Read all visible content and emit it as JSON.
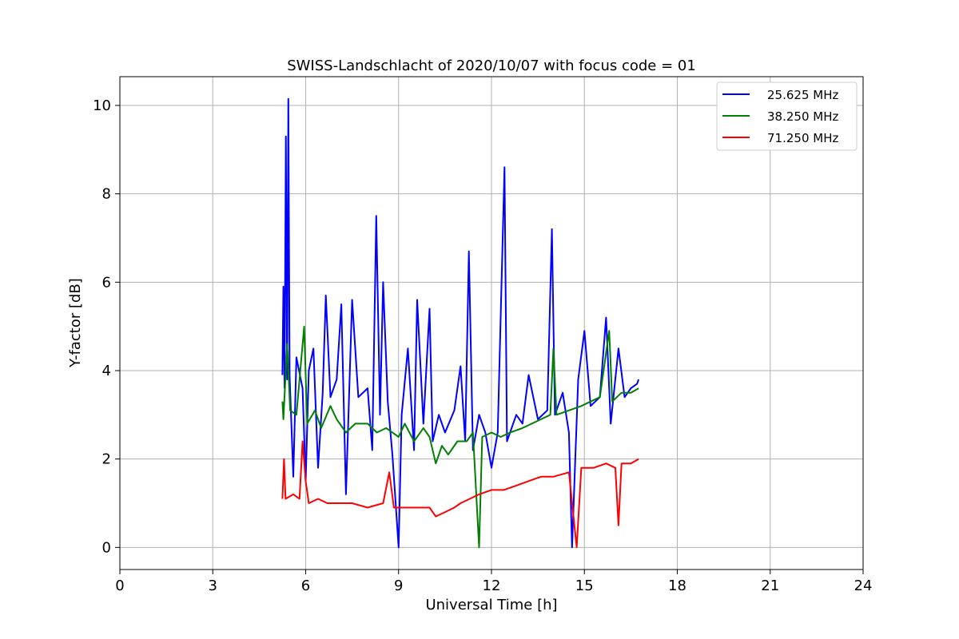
{
  "chart_data": {
    "type": "line",
    "title": "SWISS-Landschlacht of 2020/10/07 with focus code = 01",
    "xlabel": "Universal Time [h]",
    "ylabel": "Y-factor [dB]",
    "xlim": [
      0,
      24
    ],
    "ylim": [
      -0.5,
      10.65
    ],
    "xticks": [
      "0",
      "3",
      "6",
      "9",
      "12",
      "15",
      "18",
      "21",
      "24"
    ],
    "yticks": [
      "0",
      "2",
      "4",
      "6",
      "8",
      "10"
    ],
    "grid": true,
    "legend_position": "top-right",
    "series": [
      {
        "name": "25.625 MHz",
        "color": "#0000ff",
        "points": [
          [
            5.25,
            3.9
          ],
          [
            5.28,
            5.9
          ],
          [
            5.32,
            3.6
          ],
          [
            5.36,
            9.3
          ],
          [
            5.4,
            3.8
          ],
          [
            5.44,
            10.15
          ],
          [
            5.48,
            3.9
          ],
          [
            5.6,
            1.6
          ],
          [
            5.7,
            4.3
          ],
          [
            5.9,
            3.6
          ],
          [
            6.0,
            1.5
          ],
          [
            6.1,
            4.0
          ],
          [
            6.25,
            4.5
          ],
          [
            6.4,
            1.8
          ],
          [
            6.55,
            3.5
          ],
          [
            6.65,
            5.7
          ],
          [
            6.8,
            3.4
          ],
          [
            7.0,
            3.8
          ],
          [
            7.15,
            5.5
          ],
          [
            7.3,
            1.2
          ],
          [
            7.5,
            5.6
          ],
          [
            7.7,
            3.4
          ],
          [
            8.0,
            3.6
          ],
          [
            8.15,
            2.2
          ],
          [
            8.28,
            7.5
          ],
          [
            8.4,
            3.0
          ],
          [
            8.5,
            6.0
          ],
          [
            8.65,
            3.3
          ],
          [
            8.8,
            2.1
          ],
          [
            9.0,
            0.0
          ],
          [
            9.1,
            3.0
          ],
          [
            9.3,
            4.5
          ],
          [
            9.5,
            2.2
          ],
          [
            9.6,
            5.6
          ],
          [
            9.8,
            2.8
          ],
          [
            10.0,
            5.4
          ],
          [
            10.1,
            2.4
          ],
          [
            10.3,
            3.0
          ],
          [
            10.5,
            2.6
          ],
          [
            10.8,
            3.1
          ],
          [
            11.0,
            4.1
          ],
          [
            11.15,
            2.4
          ],
          [
            11.27,
            6.7
          ],
          [
            11.4,
            2.2
          ],
          [
            11.6,
            3.0
          ],
          [
            11.8,
            2.6
          ],
          [
            12.0,
            1.8
          ],
          [
            12.2,
            2.6
          ],
          [
            12.42,
            8.6
          ],
          [
            12.5,
            2.4
          ],
          [
            12.8,
            3.0
          ],
          [
            13.0,
            2.8
          ],
          [
            13.2,
            3.9
          ],
          [
            13.5,
            2.9
          ],
          [
            13.8,
            3.1
          ],
          [
            13.95,
            7.2
          ],
          [
            14.05,
            3.0
          ],
          [
            14.3,
            3.5
          ],
          [
            14.5,
            2.6
          ],
          [
            14.6,
            0.0
          ],
          [
            14.8,
            3.8
          ],
          [
            15.0,
            4.9
          ],
          [
            15.2,
            3.2
          ],
          [
            15.5,
            3.4
          ],
          [
            15.7,
            5.2
          ],
          [
            15.85,
            2.8
          ],
          [
            16.1,
            4.5
          ],
          [
            16.3,
            3.4
          ],
          [
            16.5,
            3.6
          ],
          [
            16.7,
            3.7
          ],
          [
            16.75,
            3.8
          ]
        ]
      },
      {
        "name": "38.250 MHz",
        "color": "#008000",
        "points": [
          [
            5.25,
            3.3
          ],
          [
            5.28,
            2.9
          ],
          [
            5.4,
            4.6
          ],
          [
            5.5,
            3.1
          ],
          [
            5.7,
            3.0
          ],
          [
            5.95,
            5.0
          ],
          [
            6.05,
            2.8
          ],
          [
            6.3,
            3.1
          ],
          [
            6.5,
            2.7
          ],
          [
            6.8,
            3.2
          ],
          [
            7.0,
            2.9
          ],
          [
            7.3,
            2.6
          ],
          [
            7.6,
            2.8
          ],
          [
            8.0,
            2.8
          ],
          [
            8.3,
            2.6
          ],
          [
            8.6,
            2.7
          ],
          [
            9.0,
            2.5
          ],
          [
            9.2,
            2.8
          ],
          [
            9.5,
            2.4
          ],
          [
            9.8,
            2.7
          ],
          [
            10.0,
            2.5
          ],
          [
            10.2,
            1.9
          ],
          [
            10.4,
            2.3
          ],
          [
            10.6,
            2.1
          ],
          [
            10.9,
            2.4
          ],
          [
            11.2,
            2.4
          ],
          [
            11.4,
            2.6
          ],
          [
            11.6,
            0.0
          ],
          [
            11.7,
            2.5
          ],
          [
            12.0,
            2.6
          ],
          [
            12.3,
            2.5
          ],
          [
            12.6,
            2.6
          ],
          [
            13.0,
            2.7
          ],
          [
            13.3,
            2.8
          ],
          [
            13.6,
            2.9
          ],
          [
            13.9,
            3.0
          ],
          [
            14.0,
            4.5
          ],
          [
            14.1,
            3.0
          ],
          [
            14.5,
            3.1
          ],
          [
            14.9,
            3.2
          ],
          [
            15.2,
            3.3
          ],
          [
            15.5,
            3.4
          ],
          [
            15.8,
            4.9
          ],
          [
            15.9,
            3.3
          ],
          [
            16.2,
            3.5
          ],
          [
            16.5,
            3.5
          ],
          [
            16.75,
            3.6
          ]
        ]
      },
      {
        "name": "71.250 MHz",
        "color": "#ff0000",
        "points": [
          [
            5.25,
            1.1
          ],
          [
            5.3,
            2.0
          ],
          [
            5.35,
            1.1
          ],
          [
            5.6,
            1.2
          ],
          [
            5.8,
            1.1
          ],
          [
            5.9,
            2.4
          ],
          [
            6.0,
            1.5
          ],
          [
            6.1,
            1.0
          ],
          [
            6.4,
            1.1
          ],
          [
            6.7,
            1.0
          ],
          [
            7.0,
            1.0
          ],
          [
            7.5,
            1.0
          ],
          [
            8.0,
            0.9
          ],
          [
            8.5,
            1.0
          ],
          [
            8.7,
            1.7
          ],
          [
            8.85,
            0.9
          ],
          [
            9.2,
            0.9
          ],
          [
            9.6,
            0.9
          ],
          [
            10.0,
            0.9
          ],
          [
            10.2,
            0.7
          ],
          [
            10.5,
            0.8
          ],
          [
            10.8,
            0.9
          ],
          [
            11.0,
            1.0
          ],
          [
            11.3,
            1.1
          ],
          [
            11.6,
            1.2
          ],
          [
            12.0,
            1.3
          ],
          [
            12.4,
            1.3
          ],
          [
            12.8,
            1.4
          ],
          [
            13.2,
            1.5
          ],
          [
            13.6,
            1.6
          ],
          [
            14.0,
            1.6
          ],
          [
            14.5,
            1.7
          ],
          [
            14.75,
            0.0
          ],
          [
            14.9,
            1.8
          ],
          [
            15.3,
            1.8
          ],
          [
            15.7,
            1.9
          ],
          [
            16.0,
            1.8
          ],
          [
            16.1,
            0.5
          ],
          [
            16.2,
            1.9
          ],
          [
            16.5,
            1.9
          ],
          [
            16.75,
            2.0
          ]
        ]
      }
    ]
  }
}
